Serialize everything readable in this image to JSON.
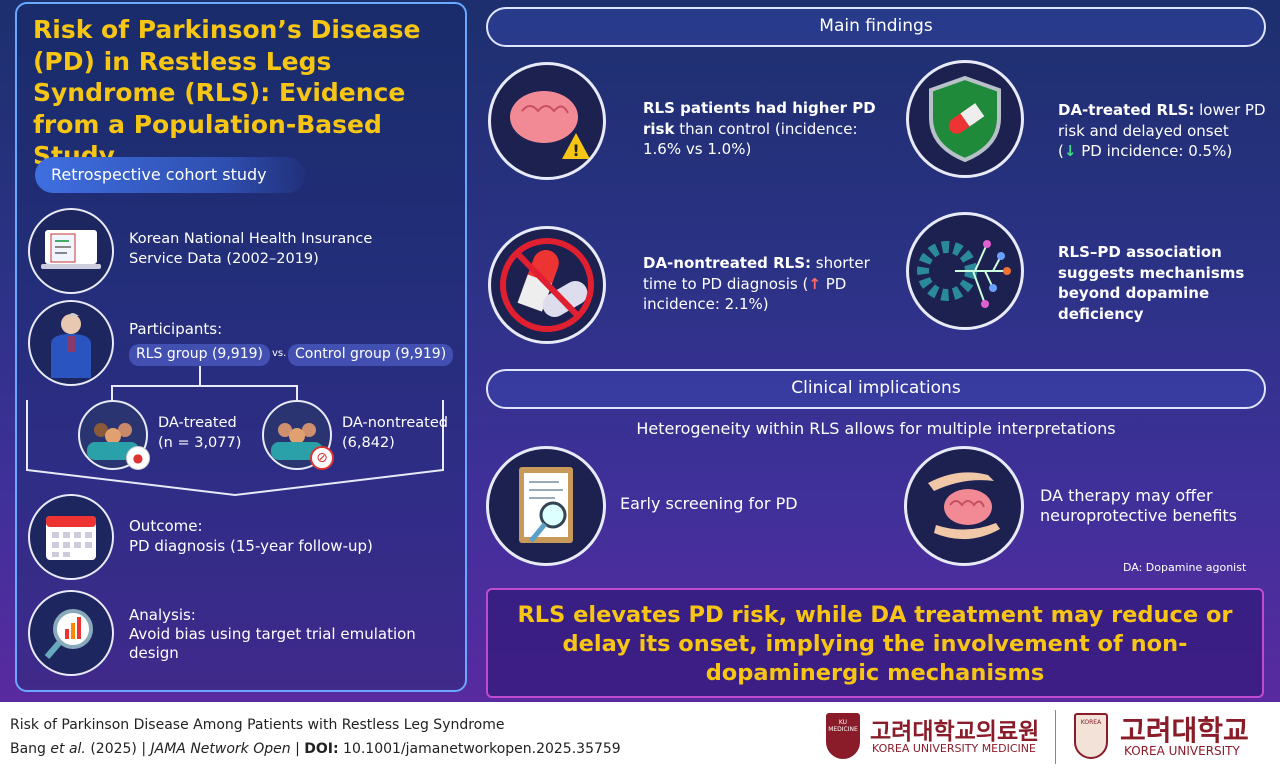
{
  "title": "Risk of Parkinson’s Disease (PD) in Restless Legs Syndrome (RLS): Evidence from a Population-Based Study",
  "study_design": "Retrospective cohort study",
  "data_source": {
    "line1": "Korean National Health Insurance",
    "line2": "Service Data (2002–2019)"
  },
  "participants": {
    "label": "Participants:",
    "rls": "RLS group (9,919)",
    "vs": "vs.",
    "control": "Control group (9,919)",
    "treated": {
      "l1": "DA-treated",
      "l2": "(n = 3,077)"
    },
    "nontreated": {
      "l1": "DA-nontreated",
      "l2": "(6,842)"
    }
  },
  "outcome": {
    "l1": "Outcome:",
    "l2": "PD diagnosis (15-year follow-up)"
  },
  "analysis": {
    "l1": "Analysis:",
    "l2": "Avoid bias using target trial emulation",
    "l3": "design"
  },
  "main_findings": {
    "header": "Main findings",
    "f1": {
      "bold": "RLS patients had higher PD",
      "bold2": "risk",
      "rest": " than control (incidence:",
      "rest2": "1.6% vs 1.0%)"
    },
    "f2": {
      "bold": "DA-treated RLS:",
      "rest": " lower PD",
      "l2": "risk and delayed onset",
      "arrow": "↓",
      "l3": " PD incidence: 0.5%)",
      "open": "("
    },
    "f3": {
      "bold": "DA-nontreated RLS:",
      "rest": " shorter",
      "l2a": "time to PD diagnosis (",
      "arrow": "↑",
      "l2b": " PD",
      "l3": "incidence: 2.1%)"
    },
    "f4": {
      "l1": "RLS–PD association",
      "l2": "suggests mechanisms",
      "l3": "beyond dopamine",
      "l4": "deficiency"
    }
  },
  "clinical": {
    "header": "Clinical implications",
    "subtitle": "Heterogeneity within RLS allows for multiple interpretations",
    "i1": "Early screening for PD",
    "i2a": "DA therapy may offer",
    "i2b": "neuroprotective benefits",
    "footnote": "DA: Dopamine agonist"
  },
  "conclusion": "RLS elevates PD risk, while DA treatment may reduce or delay its onset, implying the involvement of non-dopaminergic mechanisms",
  "footer": {
    "paper_title": "Risk of Parkinson Disease Among Patients with Restless Leg Syndrome",
    "authors": "Bang ",
    "etal": "et al.",
    "year": " (2025) | ",
    "journal": "JAMA Network Open",
    "sep": " | ",
    "doi_label": "DOI:",
    "doi": " 10.1001/jamanetworkopen.2025.35759",
    "logo1_kr": "고려대학교의료원",
    "logo1_en": "KOREA UNIVERSITY MEDICINE",
    "logo1_badge": "KU MEDICINE",
    "logo2_kr": "고려대학교",
    "logo2_en": "KOREA UNIVERSITY",
    "logo2_badge": "KOREA"
  },
  "colors": {
    "accent_yellow": "#f7c614",
    "up_red": "#ff6b6b",
    "down_green": "#3ddc84"
  }
}
